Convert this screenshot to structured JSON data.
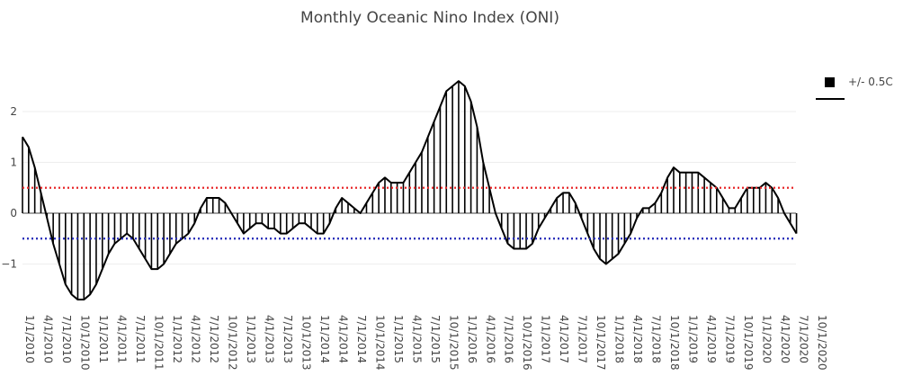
{
  "chart_data": {
    "type": "area",
    "title": "Monthly Oceanic Nino Index (ONI)",
    "xlabel": "",
    "ylabel": "",
    "ylim": [
      -1.7,
      2.6
    ],
    "yticks": [
      2,
      1,
      0,
      -1
    ],
    "ytick_labels": [
      "2",
      "1",
      "0",
      "−1"
    ],
    "grid": true,
    "legend_position": "top-right",
    "legend": [
      {
        "label": "+/- 0.5C"
      }
    ],
    "reference_lines": [
      {
        "y": 0.5,
        "color": "#e8292b",
        "style": "dotted"
      },
      {
        "y": -0.5,
        "color": "#2228b8",
        "style": "dotted"
      }
    ],
    "x_tick_labels": [
      "1/1/2010",
      "4/1/2010",
      "7/1/2010",
      "10/1/2010",
      "1/1/2011",
      "4/1/2011",
      "7/1/2011",
      "10/1/2011",
      "1/1/2012",
      "4/1/2012",
      "7/1/2012",
      "10/1/2012",
      "1/1/2013",
      "4/1/2013",
      "7/1/2013",
      "10/1/2013",
      "1/1/2014",
      "4/1/2014",
      "7/1/2014",
      "10/1/2014",
      "1/1/2015",
      "4/1/2015",
      "7/1/2015",
      "10/1/2015",
      "1/1/2016",
      "4/1/2016",
      "7/1/2016",
      "10/1/2016",
      "1/1/2017",
      "4/1/2017",
      "7/1/2017",
      "10/1/2017",
      "1/1/2018",
      "4/1/2018",
      "7/1/2018",
      "10/1/2018",
      "1/1/2019",
      "4/1/2019",
      "7/1/2019",
      "10/1/2019",
      "1/1/2020",
      "4/1/2020",
      "7/1/2020",
      "10/1/2020"
    ],
    "series": [
      {
        "start": "1/1/2010",
        "frequency": "monthly",
        "values": [
          1.5,
          1.3,
          0.9,
          0.4,
          -0.1,
          -0.6,
          -1.0,
          -1.4,
          -1.6,
          -1.7,
          -1.7,
          -1.6,
          -1.4,
          -1.1,
          -0.8,
          -0.6,
          -0.5,
          -0.4,
          -0.5,
          -0.7,
          -0.9,
          -1.1,
          -1.1,
          -1.0,
          -0.8,
          -0.6,
          -0.5,
          -0.4,
          -0.2,
          0.1,
          0.3,
          0.3,
          0.3,
          0.2,
          0.0,
          -0.2,
          -0.4,
          -0.3,
          -0.2,
          -0.2,
          -0.3,
          -0.3,
          -0.4,
          -0.4,
          -0.3,
          -0.2,
          -0.2,
          -0.3,
          -0.4,
          -0.4,
          -0.2,
          0.1,
          0.3,
          0.2,
          0.1,
          0.0,
          0.2,
          0.4,
          0.6,
          0.7,
          0.6,
          0.6,
          0.6,
          0.8,
          1.0,
          1.2,
          1.5,
          1.8,
          2.1,
          2.4,
          2.5,
          2.6,
          2.5,
          2.2,
          1.7,
          1.0,
          0.5,
          0.0,
          -0.3,
          -0.6,
          -0.7,
          -0.7,
          -0.7,
          -0.6,
          -0.3,
          -0.1,
          0.1,
          0.3,
          0.4,
          0.4,
          0.2,
          -0.1,
          -0.4,
          -0.7,
          -0.9,
          -1.0,
          -0.9,
          -0.8,
          -0.6,
          -0.4,
          -0.1,
          0.1,
          0.1,
          0.2,
          0.4,
          0.7,
          0.9,
          0.8,
          0.8,
          0.8,
          0.8,
          0.7,
          0.6,
          0.5,
          0.3,
          0.1,
          0.1,
          0.3,
          0.5,
          0.5,
          0.5,
          0.6,
          0.5,
          0.3,
          0.0,
          -0.2,
          -0.4
        ]
      }
    ],
    "colors": {
      "fill": "#000000",
      "line": "#000000",
      "zero_line": "#444444",
      "grid": "#eeeeee"
    }
  }
}
